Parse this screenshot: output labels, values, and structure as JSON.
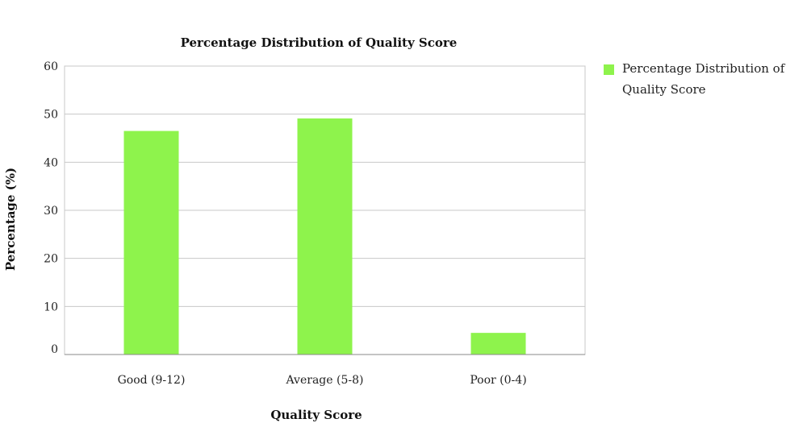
{
  "chart_data": {
    "type": "bar",
    "title": "Percentage Distribution of Quality Score",
    "xlabel": "Quality Score",
    "ylabel": "Percentage (%)",
    "categories": [
      "Good (9-12)",
      "Average (5-8)",
      "Poor (0-4)"
    ],
    "series": [
      {
        "name": "Percentage Distribution of Quality Score",
        "values": [
          46.5,
          49.1,
          4.5
        ],
        "color": "#8ef34c"
      }
    ],
    "ylim": [
      0,
      60
    ],
    "yticks": [
      0,
      10,
      20,
      30,
      40,
      50,
      60
    ],
    "grid": true,
    "legend_position": "right"
  },
  "legend": {
    "line1": "Percentage Distribution of",
    "line2": "Quality Score"
  }
}
